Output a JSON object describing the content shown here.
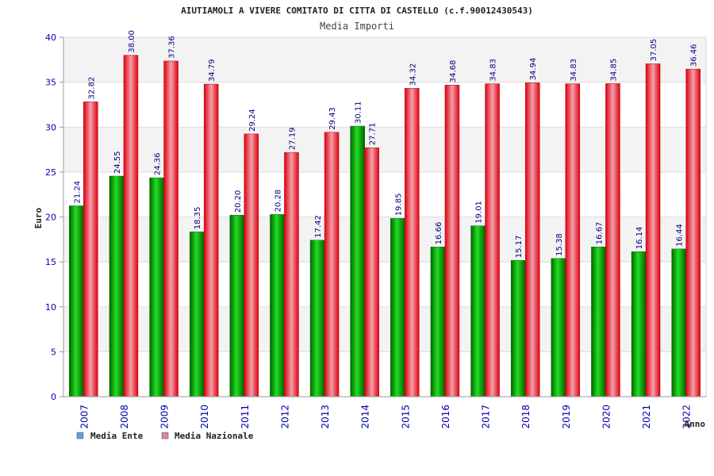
{
  "chart_data": {
    "type": "bar",
    "title": "AIUTIAMOLI A VIVERE COMITATO DI CITTA DI CASTELLO (c.f.90012430543)",
    "subtitle": "Media Importi",
    "xlabel": "Anno",
    "ylabel": "Euro",
    "ylim": [
      0,
      40
    ],
    "yticks": [
      0,
      5,
      10,
      15,
      20,
      25,
      30,
      35,
      40
    ],
    "grid": true,
    "legend_position": "bottom-left",
    "categories": [
      "2007",
      "2008",
      "2009",
      "2010",
      "2011",
      "2012",
      "2013",
      "2014",
      "2015",
      "2016",
      "2017",
      "2018",
      "2019",
      "2020",
      "2021",
      "2022"
    ],
    "series": [
      {
        "name": "Media Ente",
        "legend_color": "#5ba0e8",
        "bar_color": "#00b000",
        "values": [
          21.24,
          24.55,
          24.36,
          18.35,
          20.2,
          20.28,
          17.42,
          30.11,
          19.85,
          16.66,
          19.01,
          15.17,
          15.38,
          16.67,
          16.14,
          16.44
        ],
        "labels": [
          "21.24",
          "24.55",
          "24.36",
          "18.35",
          "20.20",
          "20.28",
          "17.42",
          "30.11",
          "19.85",
          "16.66",
          "19.01",
          "15.17",
          "15.38",
          "16.67",
          "16.14",
          "16.44"
        ]
      },
      {
        "name": "Media Nazionale",
        "legend_color": "#e080b0",
        "bar_color": "#e01020",
        "values": [
          32.82,
          38.0,
          37.36,
          34.79,
          29.24,
          27.19,
          29.43,
          27.71,
          34.32,
          34.68,
          34.83,
          34.94,
          34.83,
          34.85,
          37.05,
          36.46
        ],
        "labels": [
          "32.82",
          "38.00",
          "37.36",
          "34.79",
          "29.24",
          "27.19",
          "29.43",
          "27.71",
          "34.32",
          "34.68",
          "34.83",
          "34.94",
          "34.83",
          "34.85",
          "37.05",
          "36.46"
        ]
      }
    ]
  }
}
